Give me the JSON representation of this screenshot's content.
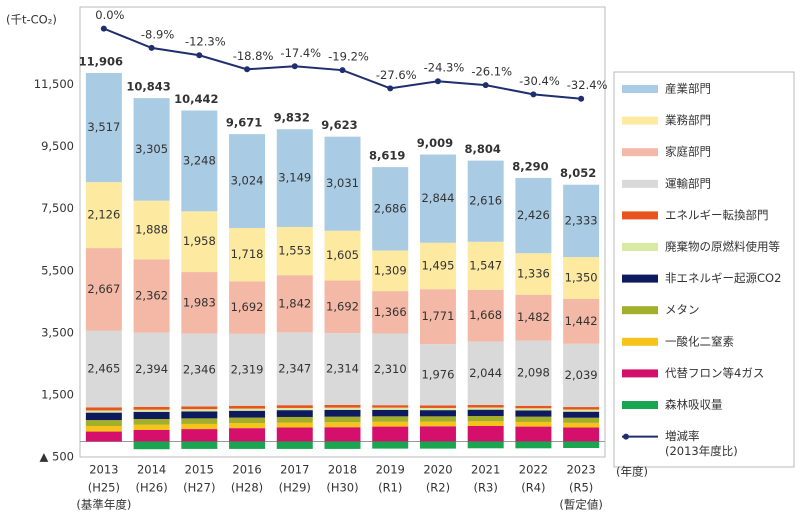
{
  "chart_data": {
    "type": "bar",
    "y_unit": "(千t-CO₂)",
    "x_unit": "(年度)",
    "categories": [
      "2013",
      "2014",
      "2015",
      "2016",
      "2017",
      "2018",
      "2019",
      "2020",
      "2021",
      "2022",
      "2023"
    ],
    "sublabels": [
      "(H25)",
      "(H26)",
      "(H27)",
      "(H28)",
      "(H29)",
      "(H30)",
      "(R1)",
      "(R2)",
      "(R3)",
      "(R4)",
      "(R5)"
    ],
    "annotations": [
      {
        "index": 0,
        "text": "(基準年度)"
      },
      {
        "index": 10,
        "text": "(暫定値)"
      }
    ],
    "totals": [
      "11,906",
      "10,843",
      "10,442",
      "9,671",
      "9,832",
      "9,623",
      "8,619",
      "9,009",
      "8,804",
      "8,290",
      "8,052"
    ],
    "ylim": [
      -500,
      14000
    ],
    "yticks": [
      {
        "value": -500,
        "label": "▲ 500"
      },
      {
        "value": 1500,
        "label": "1,500"
      },
      {
        "value": 3500,
        "label": "3,500"
      },
      {
        "value": 5500,
        "label": "5,500"
      },
      {
        "value": 7500,
        "label": "7,500"
      },
      {
        "value": 9500,
        "label": "9,500"
      },
      {
        "value": 11500,
        "label": "11,500"
      }
    ],
    "y2lim": [
      -198,
      10
    ],
    "series": [
      {
        "name": "代替フロン等4ガス",
        "color": "#d5106c",
        "values": [
          320,
          370,
          400,
          430,
          450,
          460,
          480,
          490,
          500,
          480,
          450
        ]
      },
      {
        "name": "一酸化二窒素",
        "color": "#f5c31a",
        "values": [
          180,
          170,
          165,
          160,
          160,
          160,
          155,
          150,
          150,
          150,
          150
        ]
      },
      {
        "name": "メタン",
        "color": "#a3ae2a",
        "values": [
          190,
          185,
          180,
          180,
          180,
          180,
          175,
          170,
          170,
          170,
          165
        ]
      },
      {
        "name": "非エネルギー起源CO2",
        "color": "#0d1a5e",
        "values": [
          240,
          230,
          225,
          220,
          220,
          220,
          210,
          200,
          205,
          200,
          195
        ]
      },
      {
        "name": "廃棄物の原燃料使用等",
        "color": "#d9eaa4",
        "values": [
          70,
          70,
          70,
          70,
          70,
          70,
          70,
          70,
          70,
          70,
          70
        ]
      },
      {
        "name": "エネルギー転換部門",
        "color": "#e8541e",
        "values": [
          100,
          90,
          90,
          90,
          90,
          90,
          80,
          80,
          80,
          80,
          80
        ]
      },
      {
        "name": "運輸部門",
        "color": "#d9d9d9",
        "values": [
          2465,
          2394,
          2346,
          2319,
          2347,
          2314,
          2310,
          1976,
          2044,
          2098,
          2039
        ],
        "value_labels": [
          "2,465",
          "2,394",
          "2,346",
          "2,319",
          "2,347",
          "2,314",
          "2,310",
          "1,976",
          "2,044",
          "2,098",
          "2,039"
        ]
      },
      {
        "name": "家庭部門",
        "color": "#f4b9a6",
        "values": [
          2667,
          2362,
          1983,
          1692,
          1842,
          1692,
          1366,
          1771,
          1668,
          1482,
          1442
        ],
        "value_labels": [
          "2,667",
          "2,362",
          "1,983",
          "1,692",
          "1,842",
          "1,692",
          "1,366",
          "1,771",
          "1,668",
          "1,482",
          "1,442"
        ]
      },
      {
        "name": "業務部門",
        "color": "#fde9a0",
        "values": [
          2126,
          1888,
          1958,
          1718,
          1553,
          1605,
          1309,
          1495,
          1547,
          1336,
          1350
        ],
        "value_labels": [
          "2,126",
          "1,888",
          "1,958",
          "1,718",
          "1,553",
          "1,605",
          "1,309",
          "1,495",
          "1,547",
          "1,336",
          "1,350"
        ]
      },
      {
        "name": "産業部門",
        "color": "#aacbe4",
        "values": [
          3517,
          3305,
          3248,
          3024,
          3149,
          3031,
          2686,
          2844,
          2616,
          2426,
          2333
        ],
        "value_labels": [
          "3,517",
          "3,305",
          "3,248",
          "3,024",
          "3,149",
          "3,031",
          "2,686",
          "2,844",
          "2,616",
          "2,426",
          "2,333"
        ]
      },
      {
        "name": "森林吸収量",
        "color": "#1aa651",
        "values": [
          null,
          -250,
          -240,
          -240,
          -240,
          -240,
          -230,
          -230,
          -220,
          -220,
          -210
        ]
      },
      {
        "name": "増減率",
        "name_note": "(2013年度比)",
        "type": "line",
        "axis": "y2",
        "color": "#1f2e6e",
        "values": [
          0.0,
          -8.9,
          -12.3,
          -18.8,
          -17.4,
          -19.2,
          -27.6,
          -24.3,
          -26.1,
          -30.4,
          -32.4
        ],
        "value_labels": [
          "0.0%",
          "-8.9%",
          "-12.3%",
          "-18.8%",
          "-17.4%",
          "-19.2%",
          "-27.6%",
          "-24.3%",
          "-26.1%",
          "-30.4%",
          "-32.4%"
        ]
      }
    ],
    "legend_order": [
      9,
      8,
      7,
      6,
      5,
      4,
      3,
      2,
      1,
      0,
      10,
      11
    ]
  }
}
